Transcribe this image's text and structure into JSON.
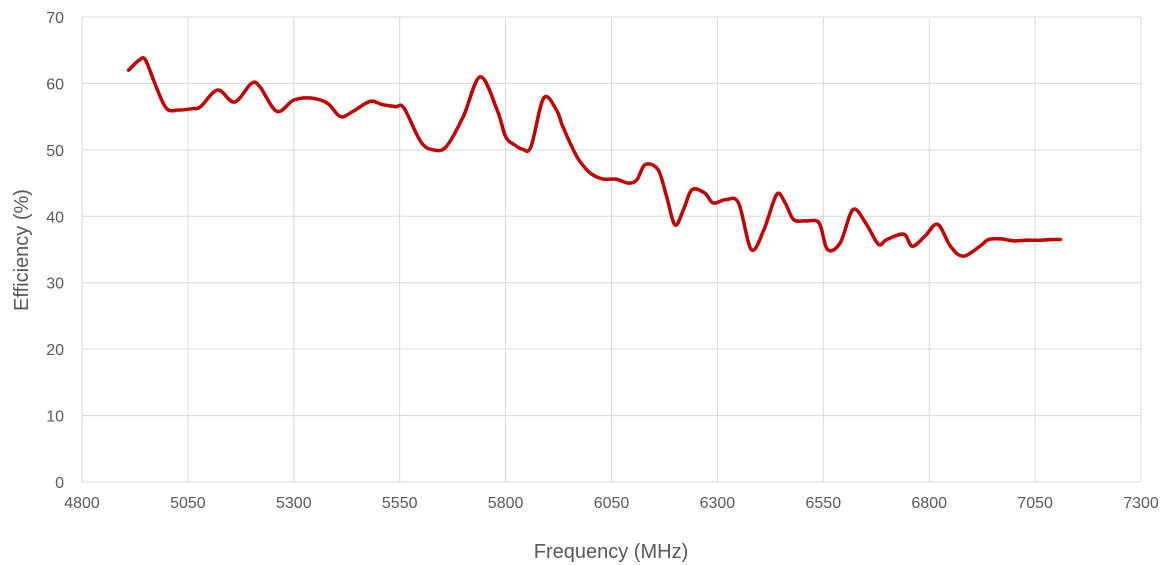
{
  "chart_data": {
    "type": "line",
    "title": "",
    "xlabel": "Frequency (MHz)",
    "ylabel": "Efficiency (%)",
    "xlim": [
      4800,
      7300
    ],
    "ylim": [
      0,
      70
    ],
    "x_ticks": [
      4800,
      5050,
      5300,
      5550,
      5800,
      6050,
      6300,
      6550,
      6800,
      7050,
      7300
    ],
    "y_ticks": [
      0,
      10,
      20,
      30,
      40,
      50,
      60,
      70
    ],
    "grid": true,
    "legend": "none",
    "colors": {
      "line": "#c00000",
      "grid": "#d9d9d9",
      "text": "#595959"
    },
    "series": [
      {
        "x": [
          4910,
          4935,
          4950,
          4975,
          5000,
          5030,
          5060,
          5080,
          5120,
          5160,
          5200,
          5220,
          5260,
          5300,
          5340,
          5380,
          5410,
          5440,
          5480,
          5510,
          5540,
          5560,
          5600,
          5630,
          5660,
          5700,
          5740,
          5780,
          5800,
          5820,
          5840,
          5860,
          5890,
          5920,
          5935,
          5960,
          5975,
          6000,
          6030,
          6060,
          6090,
          6110,
          6130,
          6160,
          6180,
          6200,
          6220,
          6240,
          6270,
          6290,
          6320,
          6350,
          6380,
          6410,
          6440,
          6460,
          6480,
          6510,
          6540,
          6560,
          6590,
          6620,
          6650,
          6680,
          6700,
          6740,
          6760,
          6790,
          6820,
          6850,
          6880,
          6920,
          6940,
          6970,
          7000,
          7030,
          7060,
          7090,
          7110
        ],
        "y": [
          62,
          63.5,
          63.5,
          59.5,
          56.2,
          56.0,
          56.2,
          56.5,
          59.0,
          57.2,
          60.0,
          59.5,
          55.8,
          57.5,
          57.8,
          57.0,
          55.0,
          55.8,
          57.3,
          56.8,
          56.5,
          56.3,
          51.2,
          50.0,
          50.5,
          55.0,
          61.0,
          56.0,
          52.0,
          50.8,
          50.1,
          50.5,
          57.8,
          56.0,
          53.5,
          50.0,
          48.3,
          46.5,
          45.6,
          45.6,
          45.0,
          45.5,
          47.8,
          47.0,
          43.0,
          38.7,
          41.0,
          44.0,
          43.5,
          42.0,
          42.5,
          42.0,
          35.0,
          38.0,
          43.3,
          42.0,
          39.5,
          39.3,
          39.0,
          35.0,
          36.0,
          41.0,
          39.0,
          35.8,
          36.5,
          37.3,
          35.5,
          37.0,
          38.8,
          35.5,
          34.0,
          35.5,
          36.5,
          36.6,
          36.3,
          36.4,
          36.4,
          36.5,
          36.5
        ]
      }
    ]
  }
}
